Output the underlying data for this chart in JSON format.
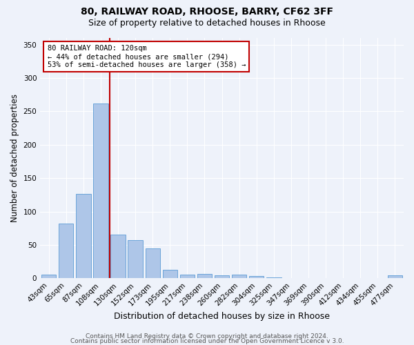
{
  "title1": "80, RAILWAY ROAD, RHOOSE, BARRY, CF62 3FF",
  "title2": "Size of property relative to detached houses in Rhoose",
  "xlabel": "Distribution of detached houses by size in Rhoose",
  "ylabel": "Number of detached properties",
  "categories": [
    "43sqm",
    "65sqm",
    "87sqm",
    "108sqm",
    "130sqm",
    "152sqm",
    "173sqm",
    "195sqm",
    "217sqm",
    "238sqm",
    "260sqm",
    "282sqm",
    "304sqm",
    "325sqm",
    "347sqm",
    "369sqm",
    "390sqm",
    "412sqm",
    "434sqm",
    "455sqm",
    "477sqm"
  ],
  "values": [
    6,
    82,
    126,
    262,
    65,
    57,
    45,
    13,
    6,
    7,
    4,
    5,
    3,
    1,
    0,
    0,
    0,
    0,
    0,
    0,
    4
  ],
  "bar_color": "#aec6e8",
  "bar_edge_color": "#5b9bd5",
  "bar_width": 0.85,
  "vline_x_index": 3.5,
  "vline_color": "#c00000",
  "annotation_text": "80 RAILWAY ROAD: 120sqm\n← 44% of detached houses are smaller (294)\n53% of semi-detached houses are larger (358) →",
  "annotation_box_color": "white",
  "annotation_box_edge": "#c00000",
  "ylim": [
    0,
    360
  ],
  "yticks": [
    0,
    50,
    100,
    150,
    200,
    250,
    300,
    350
  ],
  "footer1": "Contains HM Land Registry data © Crown copyright and database right 2024.",
  "footer2": "Contains public sector information licensed under the Open Government Licence v 3.0.",
  "bg_color": "#eef2fa",
  "grid_color": "#ffffff",
  "title1_fontsize": 10,
  "title2_fontsize": 9,
  "xlabel_fontsize": 9,
  "ylabel_fontsize": 8.5,
  "tick_fontsize": 7.5,
  "footer_fontsize": 6.5,
  "annotation_fontsize": 7.5
}
